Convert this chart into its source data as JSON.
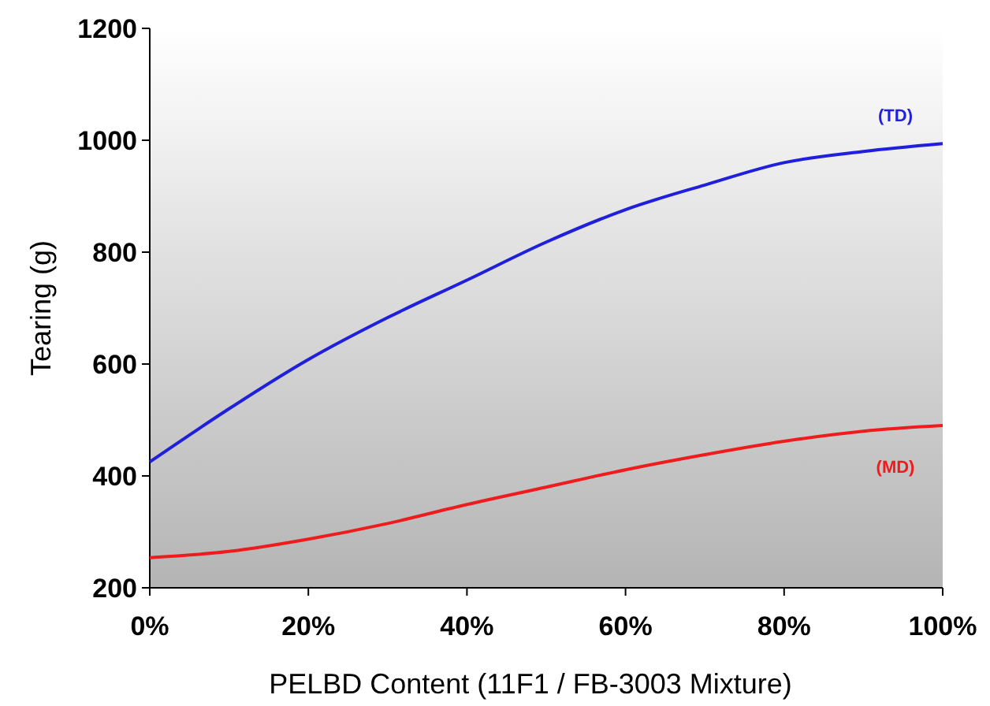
{
  "chart_data": {
    "type": "line",
    "xlabel": "PELBD Content (11F1 / FB-3003 Mixture)",
    "ylabel": "Tearing (g)",
    "x": [
      0,
      10,
      20,
      30,
      40,
      50,
      60,
      70,
      80,
      90,
      100
    ],
    "series": [
      {
        "name": "(TD)",
        "color": "#1f1fdc",
        "values": [
          425,
          520,
          608,
          683,
          750,
          818,
          876,
          920,
          960,
          980,
          994
        ]
      },
      {
        "name": "(MD)",
        "color": "#ee1c1c",
        "values": [
          254,
          265,
          287,
          315,
          349,
          380,
          411,
          438,
          462,
          480,
          490
        ]
      }
    ],
    "xlim": [
      0,
      100
    ],
    "xticks": [
      {
        "value": 0,
        "label": "0%"
      },
      {
        "value": 20,
        "label": "20%"
      },
      {
        "value": 40,
        "label": "40%"
      },
      {
        "value": 60,
        "label": "60%"
      },
      {
        "value": 80,
        "label": "80%"
      },
      {
        "value": 100,
        "label": "100%"
      }
    ],
    "ylim": [
      200,
      1200
    ],
    "yticks": [
      200,
      400,
      600,
      800,
      1000,
      1200
    ],
    "grid": false,
    "marker": "none",
    "line_style": "solid"
  }
}
